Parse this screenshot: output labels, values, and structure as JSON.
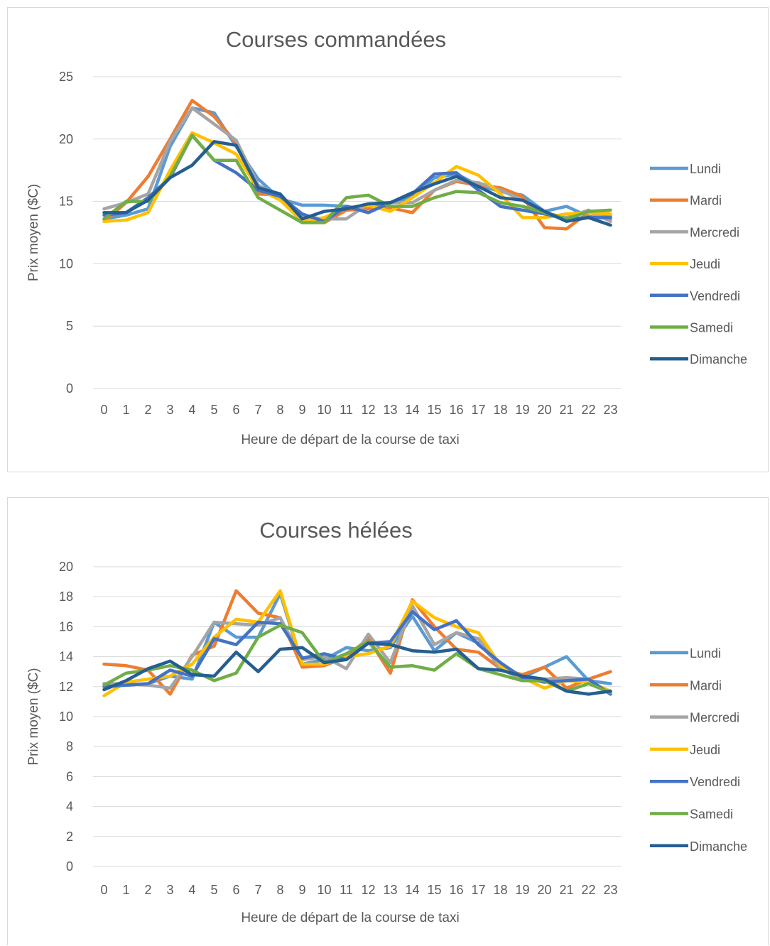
{
  "chart_data": [
    {
      "type": "line",
      "title": "Courses commandées",
      "xlabel": "Heure de départ de la course de taxi",
      "ylabel": "Prix moyen ($C)",
      "x": [
        "0",
        "1",
        "2",
        "3",
        "4",
        "5",
        "6",
        "7",
        "8",
        "9",
        "10",
        "11",
        "12",
        "13",
        "14",
        "15",
        "16",
        "17",
        "18",
        "19",
        "20",
        "21",
        "22",
        "23"
      ],
      "ylim": [
        0,
        25
      ],
      "yticks": [
        0,
        5,
        10,
        15,
        20,
        25
      ],
      "grid": true,
      "legend": "right",
      "series": [
        {
          "name": "Lundi",
          "color": "#5b9bd5",
          "values": [
            13.6,
            13.9,
            14.4,
            19.4,
            22.5,
            22.1,
            19.4,
            16.8,
            15.2,
            14.7,
            14.7,
            14.6,
            14.4,
            14.9,
            15.3,
            16.9,
            17.2,
            16.3,
            15.8,
            15.5,
            14.2,
            14.6,
            13.8,
            13.6
          ]
        },
        {
          "name": "Mardi",
          "color": "#ed7d31",
          "values": [
            13.4,
            14.9,
            17.0,
            20.0,
            23.1,
            21.8,
            19.7,
            15.6,
            15.5,
            13.9,
            13.3,
            14.3,
            14.4,
            14.5,
            14.1,
            15.9,
            16.6,
            16.3,
            16.1,
            15.4,
            12.9,
            12.8,
            14.1,
            13.8
          ]
        },
        {
          "name": "Mercredi",
          "color": "#a5a5a5",
          "values": [
            14.4,
            14.9,
            15.6,
            19.8,
            22.5,
            21.2,
            19.9,
            16.3,
            15.4,
            13.8,
            13.6,
            13.6,
            14.8,
            14.9,
            14.9,
            15.9,
            16.7,
            16.5,
            15.9,
            15.1,
            14.1,
            13.7,
            14.3,
            13.4
          ]
        },
        {
          "name": "Jeudi",
          "color": "#ffc000",
          "values": [
            13.4,
            13.5,
            14.1,
            17.5,
            20.5,
            19.7,
            18.8,
            16.0,
            15.1,
            13.4,
            13.7,
            14.5,
            14.7,
            14.2,
            15.3,
            16.5,
            17.8,
            17.1,
            15.6,
            13.7,
            13.7,
            14.0,
            14.1,
            14.0
          ]
        },
        {
          "name": "Vendredi",
          "color": "#4472c4",
          "values": [
            13.9,
            14.1,
            15.3,
            16.9,
            20.3,
            18.3,
            17.3,
            15.9,
            15.4,
            14.0,
            13.4,
            14.6,
            14.1,
            14.9,
            15.6,
            17.2,
            17.3,
            15.9,
            14.6,
            14.3,
            14.0,
            13.6,
            13.7,
            13.7
          ]
        },
        {
          "name": "Samedi",
          "color": "#70ad47",
          "values": [
            13.6,
            15.0,
            15.0,
            17.0,
            20.3,
            18.3,
            18.3,
            15.3,
            14.3,
            13.3,
            13.3,
            15.3,
            15.5,
            14.6,
            14.6,
            15.3,
            15.8,
            15.7,
            14.9,
            14.6,
            14.1,
            13.6,
            14.2,
            14.3
          ]
        },
        {
          "name": "Dimanche",
          "color": "#255e91",
          "values": [
            14.1,
            14.1,
            15.1,
            16.9,
            17.9,
            19.8,
            19.5,
            16.1,
            15.6,
            13.6,
            14.2,
            14.4,
            14.8,
            14.9,
            15.7,
            16.4,
            17.0,
            16.2,
            15.3,
            15.1,
            14.2,
            13.4,
            13.7,
            13.1
          ]
        }
      ]
    },
    {
      "type": "line",
      "title": "Courses hélées",
      "xlabel": "Heure de départ de la course de taxi",
      "ylabel": "Prix moyen ($C)",
      "x": [
        "0",
        "1",
        "2",
        "3",
        "4",
        "5",
        "6",
        "7",
        "8",
        "9",
        "10",
        "11",
        "12",
        "13",
        "14",
        "15",
        "16",
        "17",
        "18",
        "19",
        "20",
        "21",
        "22",
        "23"
      ],
      "ylim": [
        0,
        20
      ],
      "yticks": [
        0,
        2,
        4,
        6,
        8,
        10,
        12,
        14,
        16,
        18,
        20
      ],
      "grid": true,
      "legend": "right",
      "series": [
        {
          "name": "Lundi",
          "color": "#5b9bd5",
          "values": [
            12.2,
            12.1,
            12.2,
            12.7,
            12.5,
            16.3,
            15.3,
            15.3,
            18.2,
            13.5,
            13.8,
            14.6,
            14.4,
            14.6,
            16.7,
            14.4,
            15.6,
            14.9,
            13.4,
            12.6,
            13.3,
            14.0,
            12.4,
            12.2
          ]
        },
        {
          "name": "Mardi",
          "color": "#ed7d31",
          "values": [
            13.5,
            13.4,
            13.1,
            11.5,
            14.1,
            14.7,
            18.4,
            16.9,
            16.6,
            13.3,
            13.4,
            14.0,
            15.2,
            12.9,
            17.8,
            16.0,
            14.5,
            14.3,
            13.2,
            12.8,
            13.3,
            11.9,
            12.5,
            13.0
          ]
        },
        {
          "name": "Mercredi",
          "color": "#a5a5a5",
          "values": [
            12.2,
            12.2,
            12.1,
            11.9,
            14.0,
            16.3,
            16.2,
            16.1,
            16.6,
            13.8,
            14.0,
            13.2,
            15.5,
            13.6,
            17.4,
            14.8,
            15.6,
            15.2,
            13.2,
            12.5,
            12.5,
            12.6,
            12.5,
            11.5
          ]
        },
        {
          "name": "Jeudi",
          "color": "#ffc000",
          "values": [
            11.4,
            12.3,
            12.5,
            12.7,
            13.5,
            15.3,
            16.5,
            16.3,
            18.4,
            13.5,
            13.5,
            14.0,
            14.2,
            14.7,
            17.7,
            16.6,
            16.0,
            15.6,
            13.4,
            12.6,
            11.9,
            12.4,
            12.3,
            11.7
          ]
        },
        {
          "name": "Vendredi",
          "color": "#4472c4",
          "values": [
            12.0,
            12.1,
            12.2,
            13.1,
            12.7,
            15.2,
            14.8,
            16.3,
            16.2,
            13.9,
            14.2,
            13.8,
            14.9,
            15.0,
            17.0,
            15.8,
            16.4,
            14.8,
            13.6,
            12.6,
            12.3,
            12.4,
            12.5,
            11.5
          ]
        },
        {
          "name": "Samedi",
          "color": "#70ad47",
          "values": [
            12.1,
            12.9,
            13.1,
            13.4,
            13.1,
            12.4,
            12.9,
            15.3,
            16.1,
            15.6,
            13.6,
            14.2,
            15.0,
            13.3,
            13.4,
            13.1,
            14.2,
            13.2,
            12.8,
            12.4,
            12.4,
            11.7,
            12.2,
            11.6
          ]
        },
        {
          "name": "Dimanche",
          "color": "#255e91",
          "values": [
            11.8,
            12.4,
            13.2,
            13.7,
            12.8,
            12.7,
            14.3,
            13.0,
            14.5,
            14.6,
            13.6,
            13.8,
            14.9,
            14.8,
            14.4,
            14.3,
            14.5,
            13.2,
            13.1,
            12.7,
            12.5,
            11.7,
            11.5,
            11.7
          ]
        }
      ]
    }
  ]
}
